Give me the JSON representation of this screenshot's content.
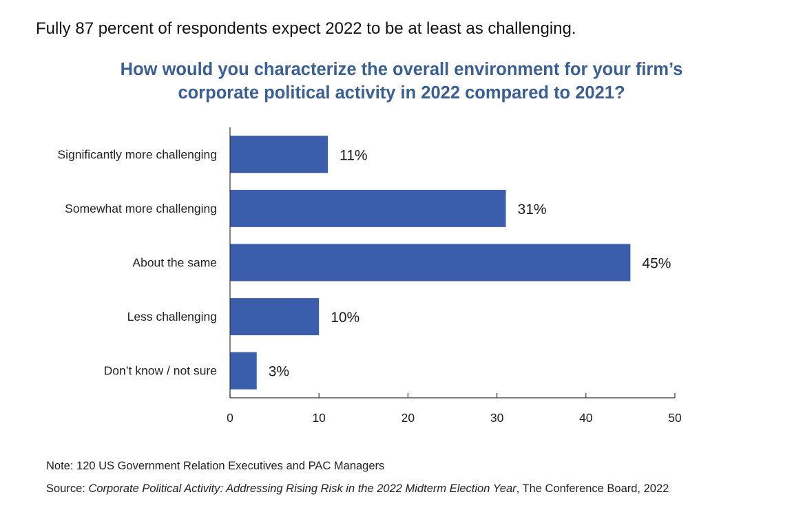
{
  "headline": "Fully 87 percent of respondents expect 2022 to be at least as challenging.",
  "chart_data": {
    "type": "bar",
    "orientation": "horizontal",
    "title_lines": [
      "How would you characterize the overall environment for your firm’s",
      "corporate political activity in 2022 compared to 2021?"
    ],
    "categories": [
      "Significantly more challenging",
      "Somewhat more challenging",
      "About the same",
      "Less challenging",
      "Don’t know / not sure"
    ],
    "values": [
      11,
      31,
      45,
      10,
      3
    ],
    "data_labels": [
      "11%",
      "31%",
      "45%",
      "10%",
      "3%"
    ],
    "xlim": [
      0,
      50
    ],
    "x_ticks": [
      0,
      10,
      20,
      30,
      40,
      50
    ],
    "grid": false,
    "legend": "none",
    "bar_color": "#3a5dac"
  },
  "footer": {
    "note": "Note: 120 US Government Relation Executives and PAC Managers",
    "source_prefix": "Source: ",
    "source_title": "Corporate Political Activity: Addressing Rising Risk in the 2022 Midterm Election Year",
    "source_suffix": ", The Conference Board, 2022"
  }
}
